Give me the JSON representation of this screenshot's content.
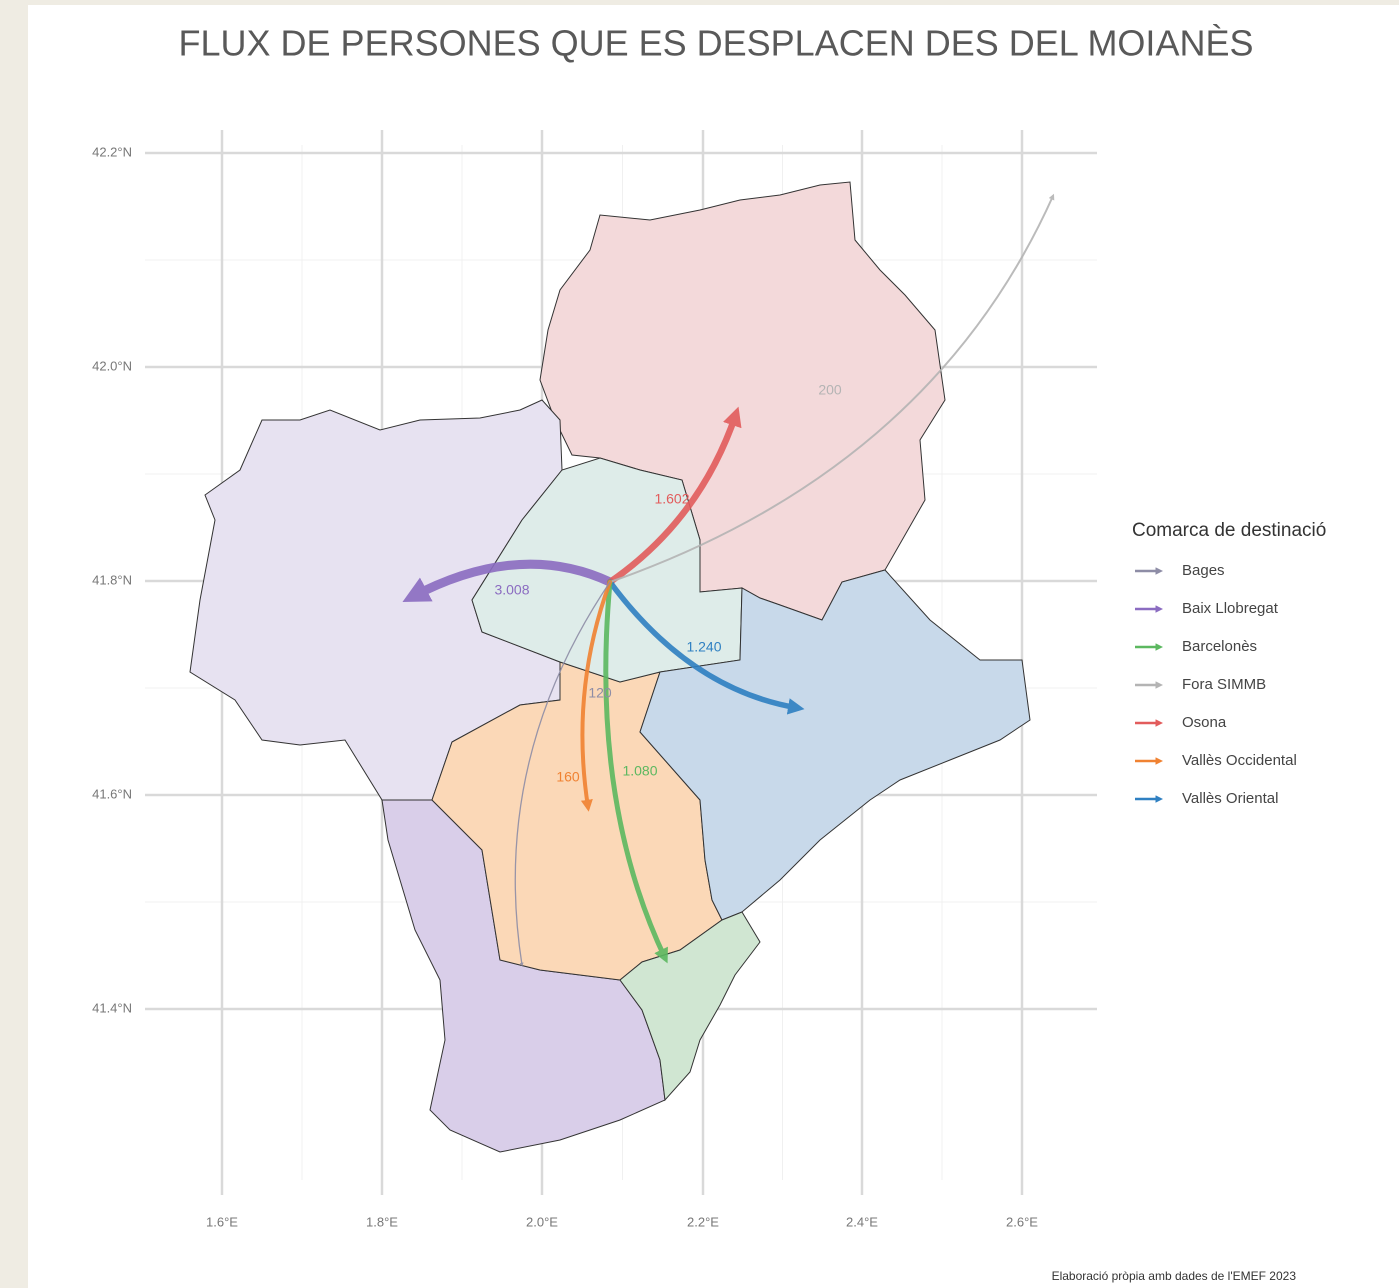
{
  "title": "FLUX DE PERSONES QUE ES DESPLACEN DES DEL MOIANÈS",
  "map": {
    "x_ticks": [
      "1.6°E",
      "1.8°E",
      "2.0°E",
      "2.2°E",
      "2.4°E",
      "2.6°E"
    ],
    "y_ticks": [
      "42.2°N",
      "42.0°N",
      "41.8°N",
      "41.6°N",
      "41.4°N"
    ],
    "flow_labels": [
      "3.008",
      "1.602",
      "1.240",
      "1.080",
      "200",
      "160",
      "120"
    ]
  },
  "legend": {
    "title": "Comarca de destinació",
    "items": [
      "Bages",
      "Baix Llobregat",
      "Barcelonès",
      "Fora SIMMB",
      "Osona",
      "Vallès Occidental",
      "Vallès Oriental"
    ]
  },
  "caption": "Elaboració pròpia amb dades de l'EMEF 2023"
}
